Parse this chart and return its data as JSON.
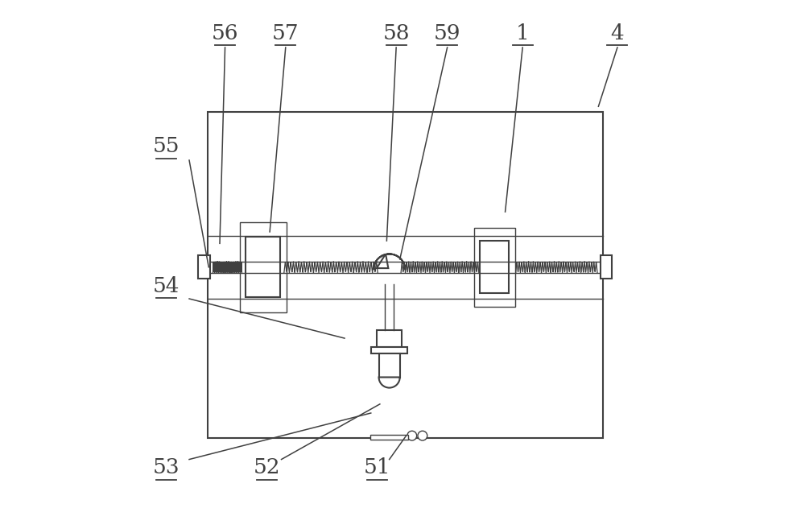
{
  "bg_color": "#ffffff",
  "line_color": "#404040",
  "label_color": "#404040",
  "fig_width": 10.0,
  "fig_height": 6.57,
  "dpi": 100
}
